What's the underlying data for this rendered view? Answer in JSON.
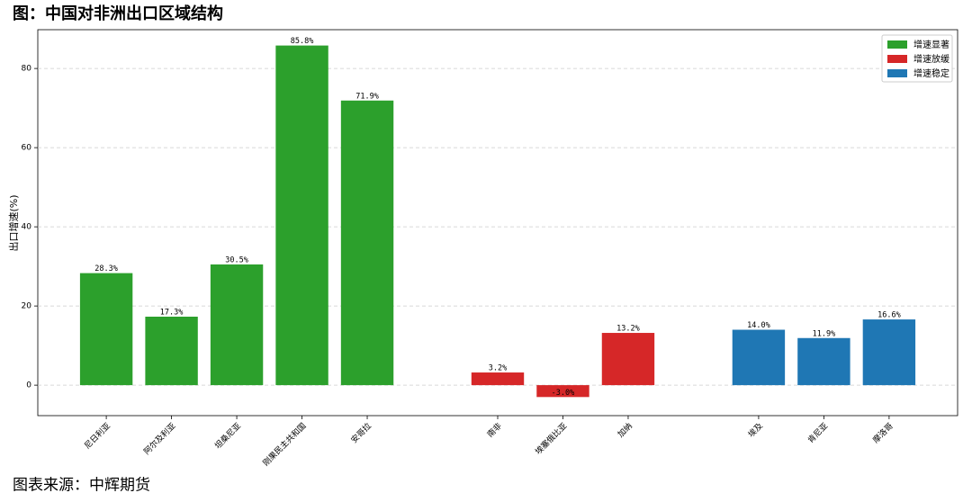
{
  "chart_data": {
    "type": "bar",
    "title": "图：中国对非洲出口区域结构",
    "source": "图表来源：中辉期货",
    "ylabel": "出口增速(%)",
    "categories": [
      "尼日利亚",
      "阿尔及利亚",
      "坦桑尼亚",
      "刚果民主共和国",
      "安哥拉",
      null,
      "南非",
      "埃塞俄比亚",
      "加纳",
      null,
      "埃及",
      "肯尼亚",
      "摩洛哥"
    ],
    "series": [
      {
        "name": "增速显著",
        "color": "#2ca02c",
        "values": [
          28.3,
          17.3,
          30.5,
          85.8,
          71.9,
          null,
          null,
          null,
          null,
          null,
          null,
          null,
          null
        ],
        "value_labels": [
          "28.3%",
          "17.3%",
          "30.5%",
          "85.8%",
          "71.9%",
          null,
          null,
          null,
          null,
          null,
          null,
          null,
          null
        ]
      },
      {
        "name": "增速放缓",
        "color": "#d62728",
        "values": [
          null,
          null,
          null,
          null,
          null,
          null,
          3.2,
          -3.0,
          13.2,
          null,
          null,
          null,
          null
        ],
        "value_labels": [
          null,
          null,
          null,
          null,
          null,
          null,
          "3.2%",
          "-3.0%",
          "13.2%",
          null,
          null,
          null,
          null
        ]
      },
      {
        "name": "增速稳定",
        "color": "#1f77b4",
        "values": [
          null,
          null,
          null,
          null,
          null,
          null,
          null,
          null,
          null,
          null,
          14.0,
          11.9,
          16.6
        ],
        "value_labels": [
          null,
          null,
          null,
          null,
          null,
          null,
          null,
          null,
          null,
          null,
          "14.0%",
          "11.9%",
          "16.6%"
        ]
      }
    ],
    "ylim": [
      -7.7,
      89.8
    ],
    "yticks": [
      0,
      20,
      40,
      60,
      80
    ],
    "grid": true,
    "legend": "upper right"
  }
}
